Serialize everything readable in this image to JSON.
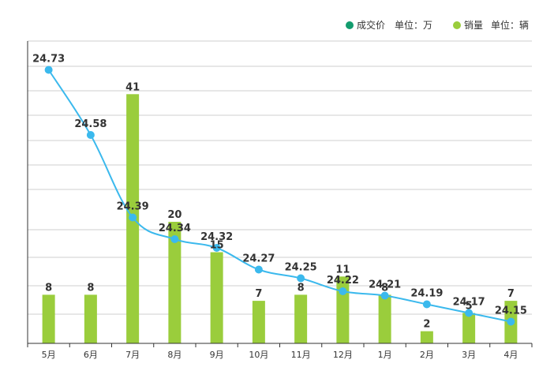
{
  "chart_data": {
    "type": "bar+line",
    "categories": [
      "5月",
      "6月",
      "7月",
      "8月",
      "9月",
      "10月",
      "11月",
      "12月",
      "1月",
      "2月",
      "3月",
      "4月"
    ],
    "series": [
      {
        "name": "成交价",
        "unit_label": "单位：万",
        "type": "line",
        "color": "#3bb9ed",
        "values": [
          24.73,
          24.58,
          24.39,
          24.34,
          24.32,
          24.27,
          24.25,
          24.22,
          24.21,
          24.19,
          24.17,
          24.15
        ]
      },
      {
        "name": "销量",
        "unit_label": "单位：辆",
        "type": "bar",
        "color": "#9acd3c",
        "values": [
          8,
          8,
          41,
          20,
          15,
          7,
          8,
          11,
          8,
          2,
          5,
          7
        ]
      }
    ],
    "legend_position": "top-right",
    "legend_marker_colors": {
      "price": "#139c6e",
      "volume": "#9acd3c"
    },
    "grid": true,
    "price_axis_range": [
      24.1,
      24.8
    ],
    "volume_axis_range": [
      0,
      50
    ]
  }
}
